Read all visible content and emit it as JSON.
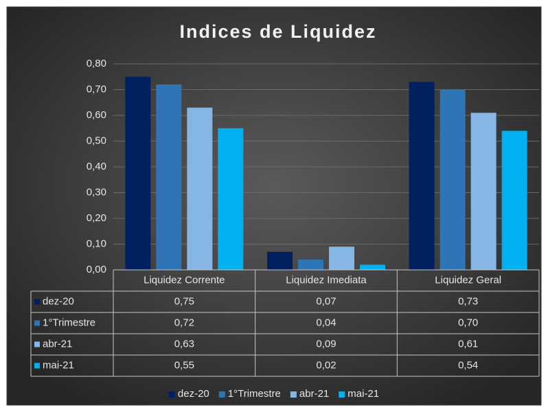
{
  "chart_data": {
    "type": "bar",
    "title": "Indices de Liquidez",
    "categories": [
      "Liquidez Corrente",
      "Liquidez Imediata",
      "Liquidez Geral"
    ],
    "series": [
      {
        "name": "dez-20",
        "color": "#002060",
        "values": [
          0.75,
          0.07,
          0.73
        ],
        "value_labels": [
          "0,75",
          "0,07",
          "0,73"
        ]
      },
      {
        "name": "1°Trimestre",
        "color": "#2e75b6",
        "values": [
          0.72,
          0.04,
          0.7
        ],
        "value_labels": [
          "0,72",
          "0,04",
          "0,70"
        ]
      },
      {
        "name": "abr-21",
        "color": "#85b6e4",
        "values": [
          0.63,
          0.09,
          0.61
        ],
        "value_labels": [
          "0,63",
          "0,09",
          "0,61"
        ]
      },
      {
        "name": "mai-21",
        "color": "#00b0f0",
        "values": [
          0.55,
          0.02,
          0.54
        ],
        "value_labels": [
          "0,55",
          "0,02",
          "0,54"
        ]
      }
    ],
    "ylim": [
      0,
      0.8
    ],
    "yticks": [
      {
        "value": 0,
        "label": "0,00"
      },
      {
        "value": 0.1,
        "label": "0,10"
      },
      {
        "value": 0.2,
        "label": "0,20"
      },
      {
        "value": 0.3,
        "label": "0,30"
      },
      {
        "value": 0.4,
        "label": "0,40"
      },
      {
        "value": 0.5,
        "label": "0,50"
      },
      {
        "value": 0.6,
        "label": "0,60"
      },
      {
        "value": 0.7,
        "label": "0,70"
      },
      {
        "value": 0.8,
        "label": "0,80"
      }
    ],
    "grid": true,
    "legend": "bottom"
  }
}
